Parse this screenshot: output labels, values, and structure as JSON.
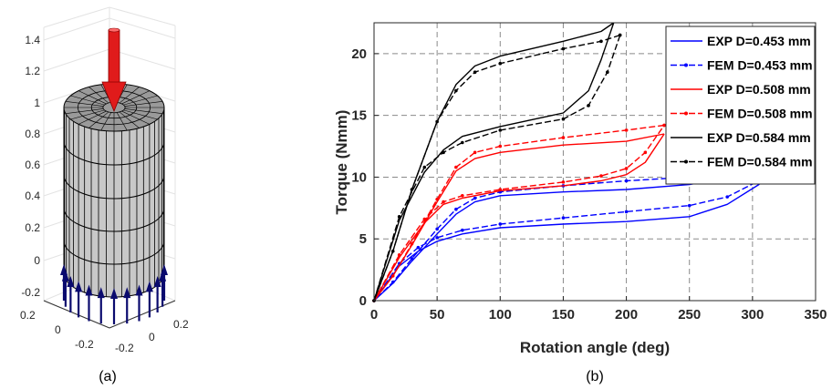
{
  "captions": {
    "left": "(a)",
    "right": "(b)"
  },
  "colors": {
    "blue": "#0000ff",
    "red": "#ff0000",
    "black": "#000000",
    "arrow_red": "#e01b1b",
    "arrow_blue": "#0a0a6e",
    "cylinder": "#c8c8c8"
  },
  "chart_data": [
    {
      "type": "3d-model",
      "zticks": [
        "1.4",
        "1.2",
        "1",
        "0.8",
        "0.6",
        "0.4",
        "0.2",
        "0",
        "-0.2"
      ],
      "xticks": [
        "0.2",
        "0",
        "-0.2"
      ],
      "yticks": [
        "-0.2",
        "0",
        "0.2"
      ]
    },
    {
      "type": "line",
      "xlabel": "Rotation angle (deg)",
      "ylabel": "Torque (Nmm)",
      "xlim": [
        0,
        350
      ],
      "ylim": [
        0,
        22.5
      ],
      "xticks": [
        0,
        50,
        100,
        150,
        200,
        250,
        300,
        350
      ],
      "yticks": [
        0,
        5,
        10,
        15,
        20
      ],
      "grid": true,
      "legend_position": "top-right",
      "series": [
        {
          "name": "EXP D=0.453 mm",
          "color": "#0000ff",
          "style": "solid",
          "x": [
            0,
            20,
            35,
            50,
            70,
            100,
            150,
            200,
            250,
            280,
            305,
            325
          ],
          "y": [
            0,
            2.8,
            4.0,
            4.8,
            5.4,
            5.9,
            6.2,
            6.4,
            6.8,
            7.8,
            9.4,
            11.3
          ]
        },
        {
          "name": "",
          "color": "#0000ff",
          "style": "solid",
          "x": [
            325,
            300,
            250,
            200,
            150,
            100,
            80,
            65,
            50,
            30,
            15,
            0
          ],
          "y": [
            11.3,
            10.3,
            9.4,
            9.0,
            8.8,
            8.5,
            8.0,
            7.0,
            5.4,
            3.2,
            1.4,
            0
          ]
        },
        {
          "name": "FEM D=0.453 mm",
          "color": "#0000ff",
          "style": "dashed-dot",
          "x": [
            0,
            20,
            35,
            50,
            70,
            100,
            150,
            200,
            250,
            280,
            305,
            325
          ],
          "y": [
            0,
            3.0,
            4.3,
            5.1,
            5.7,
            6.2,
            6.7,
            7.2,
            7.7,
            8.4,
            9.7,
            11.3
          ]
        },
        {
          "name": "",
          "color": "#0000ff",
          "style": "dashed-dot",
          "x": [
            325,
            300,
            250,
            200,
            150,
            100,
            80,
            65,
            50,
            30,
            15,
            0
          ],
          "y": [
            11.3,
            10.5,
            10.0,
            9.7,
            9.3,
            8.8,
            8.3,
            7.4,
            5.8,
            3.4,
            1.5,
            0
          ]
        },
        {
          "name": "EXP D=0.508 mm",
          "color": "#ff0000",
          "style": "solid",
          "x": [
            0,
            20,
            40,
            55,
            70,
            100,
            150,
            180,
            200,
            215,
            230
          ],
          "y": [
            0,
            3.5,
            6.3,
            7.8,
            8.3,
            8.9,
            9.3,
            9.7,
            10.2,
            11.2,
            13.5
          ]
        },
        {
          "name": "",
          "color": "#ff0000",
          "style": "solid",
          "x": [
            230,
            200,
            150,
            100,
            80,
            65,
            50,
            30,
            15,
            0
          ],
          "y": [
            13.5,
            12.9,
            12.6,
            12.0,
            11.5,
            10.5,
            8.0,
            4.5,
            2.0,
            0
          ]
        },
        {
          "name": "FEM D=0.508 mm",
          "color": "#ff0000",
          "style": "dashed-dot",
          "x": [
            0,
            20,
            40,
            55,
            70,
            100,
            150,
            180,
            200,
            215,
            230
          ],
          "y": [
            0,
            3.7,
            6.6,
            8.0,
            8.5,
            9.0,
            9.6,
            10.1,
            10.7,
            12.0,
            14.2
          ]
        },
        {
          "name": "",
          "color": "#ff0000",
          "style": "dashed-dot",
          "x": [
            230,
            200,
            150,
            100,
            80,
            65,
            50,
            30,
            15,
            0
          ],
          "y": [
            14.2,
            13.8,
            13.2,
            12.5,
            12.0,
            10.8,
            8.2,
            4.6,
            2.0,
            0
          ]
        },
        {
          "name": "EXP D=0.584 mm",
          "color": "#000000",
          "style": "solid",
          "x": [
            0,
            20,
            40,
            55,
            70,
            100,
            150,
            170,
            180,
            190
          ],
          "y": [
            0,
            6.5,
            10.4,
            12.2,
            13.3,
            14.1,
            15.2,
            17.0,
            19.5,
            22.5
          ]
        },
        {
          "name": "",
          "color": "#000000",
          "style": "solid",
          "x": [
            190,
            180,
            150,
            100,
            80,
            65,
            50,
            30,
            15,
            0
          ],
          "y": [
            22.5,
            21.8,
            21.0,
            19.8,
            19.0,
            17.5,
            14.5,
            9.0,
            4.0,
            0
          ]
        },
        {
          "name": "FEM D=0.584 mm",
          "color": "#000000",
          "style": "dashed-dot",
          "x": [
            0,
            20,
            40,
            55,
            70,
            100,
            150,
            170,
            185,
            195
          ],
          "y": [
            0,
            6.8,
            10.8,
            12.0,
            12.8,
            13.8,
            14.7,
            15.8,
            18.5,
            21.5
          ]
        },
        {
          "name": "",
          "color": "#000000",
          "style": "dashed-dot",
          "x": [
            195,
            180,
            150,
            100,
            80,
            65,
            50,
            30,
            15,
            0
          ],
          "y": [
            21.5,
            21.0,
            20.4,
            19.2,
            18.5,
            17.0,
            14.5,
            9.0,
            4.0,
            0
          ]
        }
      ]
    }
  ]
}
